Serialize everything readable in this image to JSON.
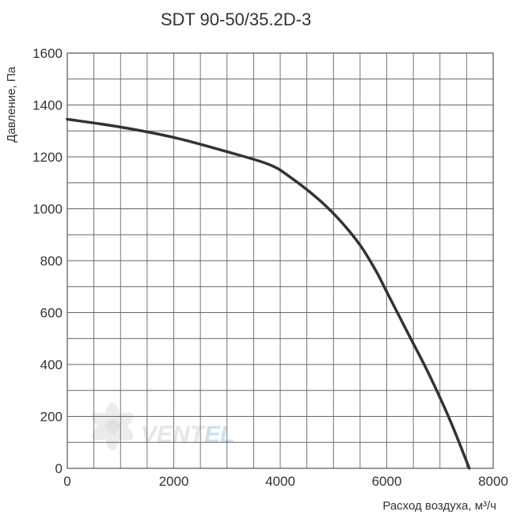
{
  "chart_data": {
    "type": "line",
    "title": "SDT 90-50/35.2D-3",
    "xlabel": "Расход воздуха, м³/ч",
    "ylabel": "Давление, Па",
    "xlim": [
      0,
      8000
    ],
    "ylim": [
      0,
      1600
    ],
    "x_ticks": [
      "0",
      "2000",
      "4000",
      "6000",
      "8000"
    ],
    "y_ticks": [
      "0",
      "200",
      "400",
      "600",
      "800",
      "1000",
      "1200",
      "1400",
      "1600"
    ],
    "grid": true,
    "series": [
      {
        "x": [
          0,
          1000,
          2000,
          3000,
          3800,
          4200,
          4700,
          5100,
          5500,
          5800,
          6000,
          6400,
          6800,
          7200,
          7550
        ],
        "y": [
          1345,
          1315,
          1275,
          1220,
          1170,
          1120,
          1040,
          960,
          860,
          760,
          680,
          520,
          360,
          180,
          0
        ]
      }
    ],
    "colors": {
      "line": "#333333",
      "grid": "#666666",
      "text": "#333333"
    }
  },
  "watermark": {
    "text_part1": "VENT",
    "text_part2": "EL",
    "icon": "fan-icon",
    "color1": "#e6e6e6",
    "color2": "#cfe0ef"
  }
}
